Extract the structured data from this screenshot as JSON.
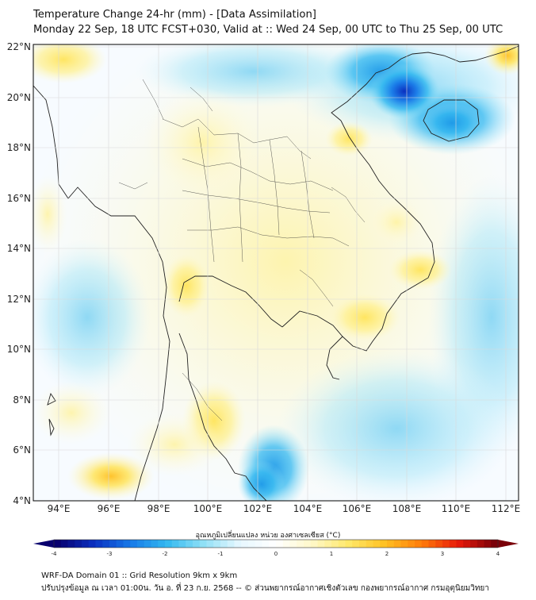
{
  "title": {
    "line1": "Temperature Change 24-hr (mm) - [Data Assimilation]",
    "line2": "Monday 22 Sep, 18 UTC FCST+030, Valid at :: Wed 24 Sep, 00 UTC to Thu 25 Sep, 00 UTC"
  },
  "axes": {
    "lon_ticks": [
      "94°E",
      "96°E",
      "98°E",
      "100°E",
      "102°E",
      "104°E",
      "106°E",
      "108°E",
      "110°E",
      "112°E"
    ],
    "lat_ticks": [
      "22°N",
      "20°N",
      "18°N",
      "16°N",
      "14°N",
      "12°N",
      "10°N",
      "8°N",
      "6°N",
      "4°N"
    ]
  },
  "colorbar": {
    "label": "อุณหภูมิเปลี่ยนแปลง หน่วย องศาเซลเซียส (°C)",
    "ticks": [
      "-4",
      "-3",
      "-2",
      "-1",
      "0",
      "1",
      "2",
      "3",
      "4"
    ],
    "range": [
      -4,
      4
    ],
    "colors": [
      "#08006e",
      "#0a2fc0",
      "#1779e8",
      "#33b8f0",
      "#8fe0f6",
      "#e6f7ff",
      "#ffffff",
      "#fff8c8",
      "#ffe869",
      "#ffc022",
      "#ff7c0a",
      "#e81a0a",
      "#7a0009"
    ]
  },
  "footer": {
    "line1": "WRF-DA Domain 01 :: Grid Resolution 9km x 9km",
    "line2": "ปรับปรุงข้อมูล ณ เวลา 01:00น. วัน อ. ที่ 23 ก.ย. 2568 -- © ส่วนพยากรณ์อากาศเชิงตัวเลข กองพยากรณ์อากาศ กรมอุตุนิยมวิทยา"
  },
  "field": {
    "highlights": [
      {
        "name": "gulf-of-tonkin-cold",
        "lon": 107.6,
        "lat": 20.0,
        "value": -2.3
      },
      {
        "name": "hainan-cold",
        "lon": 110.0,
        "lat": 19.3,
        "value": -1.6
      },
      {
        "name": "south-china-sea-cold",
        "lon": 106.0,
        "lat": 21.5,
        "value": -1.0
      },
      {
        "name": "malay-peninsula-cold",
        "lon": 101.9,
        "lat": 5.2,
        "value": -1.1
      },
      {
        "name": "northwest-warm",
        "lon": 94.5,
        "lat": 21.5,
        "value": 0.9
      },
      {
        "name": "myanmar-warm",
        "lon": 98.8,
        "lat": 12.8,
        "value": 0.9
      },
      {
        "name": "peninsula-warm",
        "lon": 100.2,
        "lat": 6.8,
        "value": 1.0
      },
      {
        "name": "andaman-warm",
        "lon": 97.0,
        "lat": 5.1,
        "value": 1.1
      },
      {
        "name": "vietnam-coast-warm",
        "lon": 105.4,
        "lat": 17.8,
        "value": 0.8
      },
      {
        "name": "guangdong-warm",
        "lon": 111.8,
        "lat": 21.8,
        "value": 1.2
      },
      {
        "name": "cambodia-warm",
        "lon": 106.4,
        "lat": 11.3,
        "value": 0.7
      },
      {
        "name": "central-vietnam-warm",
        "lon": 107.8,
        "lat": 13.0,
        "value": 0.7
      },
      {
        "name": "ocean-cold",
        "lon": 110.5,
        "lat": 11.0,
        "value": -0.5
      }
    ]
  }
}
